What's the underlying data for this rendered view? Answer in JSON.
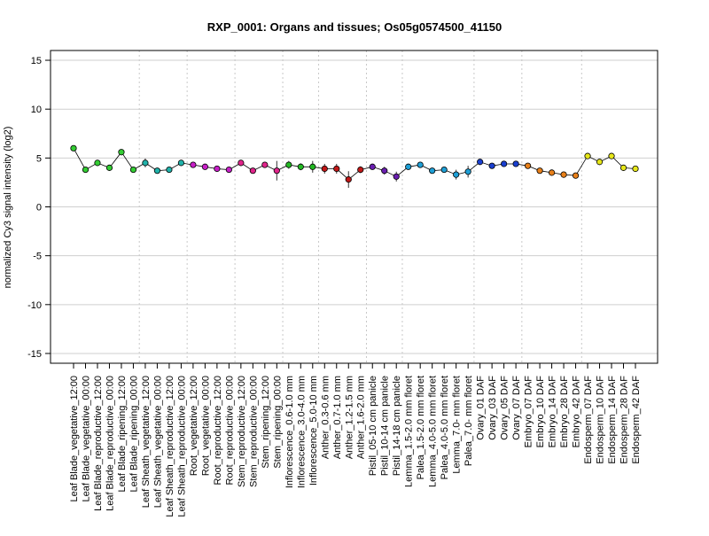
{
  "chart_data": {
    "type": "line",
    "title": "RXP_0001: Organs and tissues; Os05g0574500_41150",
    "xlabel": "",
    "ylabel": "normalized Cy3 signal intensity (log2)",
    "ylim": [
      -16,
      16
    ],
    "yticks": [
      -15,
      -10,
      -5,
      0,
      5,
      10,
      15
    ],
    "ytick_labels": [
      "-15",
      "-10",
      "-5",
      "0",
      "5",
      "10",
      "15"
    ],
    "grid": true,
    "legend": "none",
    "categories": [
      "Leaf Blade_vegetative_12:00",
      "Leaf Blade_vegetative_00:00",
      "Leaf Blade_reproductive_12:00",
      "Leaf Blade_reproductive_00:00",
      "Leaf Blade_ripening_12:00",
      "Leaf Blade_ripening_00:00",
      "Leaf Sheath_vegetative_12:00",
      "Leaf Sheath_vegetative_00:00",
      "Leaf Sheath_reproductive_12:00",
      "Leaf Sheath_reproductive_00:00",
      "Root_vegetative_12:00",
      "Root_vegetative_00:00",
      "Root_reproductive_12:00",
      "Root_reproductive_00:00",
      "Stem_reproductive_12:00",
      "Stem_reproductive_00:00",
      "Stem_ripening_12:00",
      "Stem_ripening_00:00",
      "Inflorescence_0.6-1.0 mm",
      "Inflorescence_3.0-4.0 mm",
      "Inflorescence_5.0-10 mm",
      "Anther_0.3-0.6 mm",
      "Anther_0.7-1.0 mm",
      "Anther_1.2-1.5 mm",
      "Anther_1.6-2.0 mm",
      "Pistil_05-10 cm panicle",
      "Pistil_10-14 cm panicle",
      "Pistil_14-18 cm panicle",
      "Lemma_1.5-2.0 mm floret",
      "Palea_1.5-2.0 mm floret",
      "Lemma_4.0-5.0 mm floret",
      "Palea_4.0-5.0 mm floret",
      "Lemma_7.0- mm floret",
      "Palea_7.0- mm floret",
      "Ovary_01 DAF",
      "Ovary_03 DAF",
      "Ovary_05 DAF",
      "Ovary_07 DAF",
      "Embryo_07 DAF",
      "Embryo_10 DAF",
      "Embryo_14 DAF",
      "Embryo_28 DAF",
      "Embryo_42 DAF",
      "Endosperm_07 DAF",
      "Endosperm_10 DAF",
      "Endosperm_14 DAF",
      "Endosperm_28 DAF",
      "Endosperm_42 DAF"
    ],
    "series": [
      {
        "values": [
          6.0,
          3.8,
          4.5,
          4.0,
          5.6,
          3.8,
          4.5,
          3.7,
          3.8,
          4.5,
          4.3,
          4.1,
          3.9,
          3.8,
          4.5,
          3.7,
          4.3,
          3.7,
          4.3,
          4.1,
          4.1,
          3.9,
          3.9,
          2.8,
          3.8,
          4.1,
          3.7,
          3.1,
          4.1,
          4.3,
          3.7,
          3.8,
          3.3,
          3.6,
          4.6,
          4.2,
          4.4,
          4.4,
          4.2,
          3.7,
          3.5,
          3.3,
          3.2,
          5.2,
          4.6,
          5.2,
          4.0,
          3.9
        ],
        "error": [
          0.15,
          0.25,
          0.2,
          0.2,
          0.2,
          0.2,
          0.45,
          0.3,
          0.3,
          0.2,
          0.2,
          0.2,
          0.2,
          0.2,
          0.15,
          0.2,
          0.2,
          1.0,
          0.4,
          0.35,
          0.6,
          0.5,
          0.5,
          0.85,
          0.35,
          0.3,
          0.4,
          0.5,
          0.3,
          0.2,
          0.3,
          0.25,
          0.5,
          0.6,
          0.2,
          0.2,
          0.2,
          0.2,
          0.2,
          0.2,
          0.2,
          0.2,
          0.2,
          0.2,
          0.2,
          0.2,
          0.2,
          0.3
        ],
        "colors": [
          "#33cc33",
          "#33cc33",
          "#33cc33",
          "#33cc33",
          "#33cc33",
          "#33cc33",
          "#20b2aa",
          "#20b2aa",
          "#20b2aa",
          "#20b2aa",
          "#c71fc7",
          "#c71fc7",
          "#c71fc7",
          "#c71fc7",
          "#e0248a",
          "#e0248a",
          "#e0248a",
          "#e0248a",
          "#22b822",
          "#22b822",
          "#22b822",
          "#c01818",
          "#c01818",
          "#c01818",
          "#c01818",
          "#6a1fb0",
          "#6a1fb0",
          "#6a1fb0",
          "#1e9fd6",
          "#1e9fd6",
          "#1e9fd6",
          "#1e9fd6",
          "#1e9fd6",
          "#1e9fd6",
          "#1a3fd0",
          "#1a3fd0",
          "#1a3fd0",
          "#1a3fd0",
          "#e8801a",
          "#e8801a",
          "#e8801a",
          "#e8801a",
          "#e8801a",
          "#e6e619",
          "#e6e619",
          "#e6e619",
          "#e6e619",
          "#e6e619"
        ]
      }
    ],
    "group_separators_after": [
      5,
      9,
      13,
      17,
      20,
      24,
      27,
      33,
      37,
      42
    ]
  }
}
